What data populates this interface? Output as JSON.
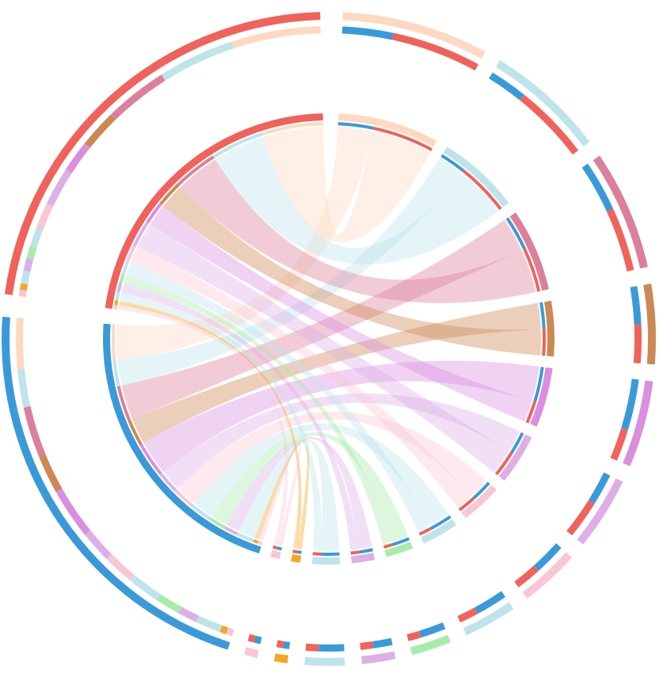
{
  "chart_data": {
    "type": "chord",
    "sources": [
      {
        "color": "#3a9ad9"
      },
      {
        "color": "#f0625a"
      }
    ],
    "targets": [
      {
        "color": "#fcd9c0",
        "values": [
          8,
          14
        ]
      },
      {
        "color": "#bfe3ea",
        "values": [
          6,
          12
        ]
      },
      {
        "color": "#db7f9b",
        "values": [
          8,
          10
        ]
      },
      {
        "color": "#cc8855",
        "values": [
          6,
          6
        ]
      },
      {
        "color": "#d98ee0",
        "values": [
          8,
          5
        ]
      },
      {
        "color": "#dcb0e6",
        "values": [
          5,
          6
        ]
      },
      {
        "color": "#f9c7d4",
        "values": [
          5,
          4
        ]
      },
      {
        "color": "#bfe3ea",
        "values": [
          5,
          3
        ]
      },
      {
        "color": "#a8ecaa",
        "values": [
          4,
          2
        ]
      },
      {
        "color": "#dcb0e6",
        "values": [
          3,
          2
        ]
      },
      {
        "color": "#bfe3ea",
        "values": [
          4,
          2
        ]
      },
      {
        "color": "#f5a623",
        "values": [
          1,
          1
        ]
      },
      {
        "color": "#f9c7d4",
        "values": [
          1,
          1
        ]
      }
    ]
  }
}
